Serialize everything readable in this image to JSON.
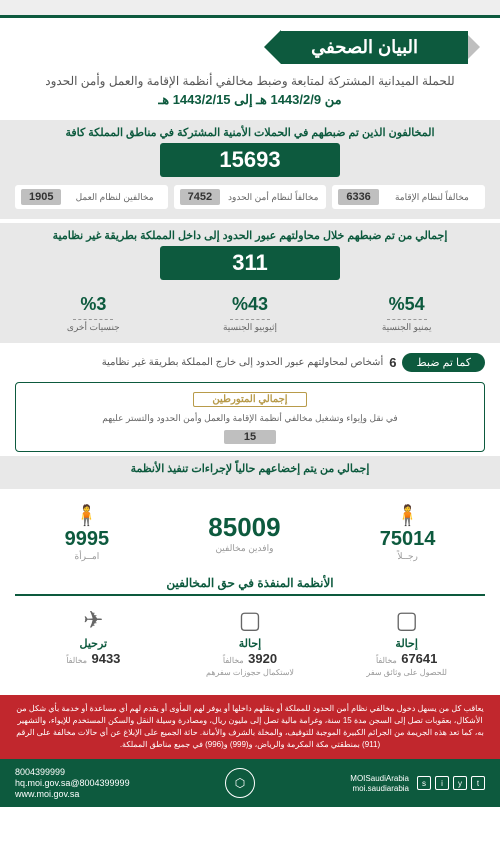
{
  "title": "البيان الصحفي",
  "sub1": "للحملة الميدانية المشتركة لمتابعة وضبط مخالفي أنظمة الإقامة والعمل وأمن الحدود",
  "sub2": "من 1443/2/9 هـ إلى 1443/2/15 هـ",
  "section1": {
    "heading": "المخالفون الذين تم ضبطهم في الحملات الأمنية المشتركة في مناطق المملكة كافة",
    "total": "15693",
    "items": [
      {
        "n": "6336",
        "t": "مخالفاً لنظام الإقامة"
      },
      {
        "n": "7452",
        "t": "مخالفاً لنظام أمن الحدود"
      },
      {
        "n": "1905",
        "t": "مخالفين لنظام العمل"
      }
    ]
  },
  "section2": {
    "heading": "إجمالي من تم ضبطهم خلال محاولتهم عبور الحدود إلى داخل المملكة بطريقة غير نظامية",
    "total": "311",
    "pcts": [
      {
        "p": "%54",
        "l": "يمنيو الجنسية"
      },
      {
        "p": "%43",
        "l": "إثيوبيو الجنسية"
      },
      {
        "p": "%3",
        "l": "جنسيات أخرى"
      }
    ]
  },
  "outbound": {
    "pill": "كما تم ضبط",
    "n": "6",
    "rest": "أشخاص لمحاولتهم عبور الحدود إلى خارج المملكة بطريقة غير نظامية"
  },
  "accomplice": {
    "lbl": "إجمالي المتورطين",
    "txt": "في نقل وإيواء وتشغيل مخالفي أنظمة الإقامة والعمل وأمن الحدود والتستر عليهم",
    "n": "15"
  },
  "section3": {
    "heading": "إجمالي من يتم إخضاعهم حالياً لإجراءات تنفيذ الأنظمة"
  },
  "demo": {
    "men": {
      "n": "75014",
      "l": "رجــلاً"
    },
    "total": {
      "n": "85009",
      "l": "وافدين مخالفين"
    },
    "women": {
      "n": "9995",
      "l": "امــرأة"
    }
  },
  "actions_h": "الأنظمة المنفذة في حق المخالفين",
  "actions": [
    {
      "lbl": "إحالة",
      "n": "67641",
      "sm": "مخالفاً",
      "sm2": "للحصول على وثائق سفر"
    },
    {
      "lbl": "إحالة",
      "n": "3920",
      "sm": "مخالفاً",
      "sm2": "لاستكمال حجوزات سفرهم"
    },
    {
      "lbl": "ترحيل",
      "n": "9433",
      "sm": "مخالفاً",
      "sm2": ""
    }
  ],
  "warning": "يعاقب كل من يسهل دخول مخالفي نظام أمن الحدود للمملكة أو ينقلهم داخلها أو يوفر لهم المأوى أو يقدم لهم أي مساعدة أو خدمة بأي شكل من الأشكال، بعقوبات تصل إلى السجن مدة 15 سنة، وغرامة مالية تصل إلى مليون ريال، ومصادرة وسيلة النقل والسكن المستخدم للإيواء، والتشهير به، كما تعد هذه الجريمة من الجرائم الكبيرة الموجبة للتوقيف، والمخلة بالشرف والأمانة. حاثة الجميع على الإبلاغ عن أي حالات مخالفة على الرقم (911) بمنطقتي مكة المكرمة والرياض، و(999) و(996) في جميع مناطق المملكة.",
  "footer": {
    "h1": "MOISaudiArabia",
    "h2": "moi.saudiarabia",
    "p1": "8004399999",
    "p2": "8004399999@hq.moi.gov.sa",
    "p3": "www.moi.gov.sa"
  }
}
